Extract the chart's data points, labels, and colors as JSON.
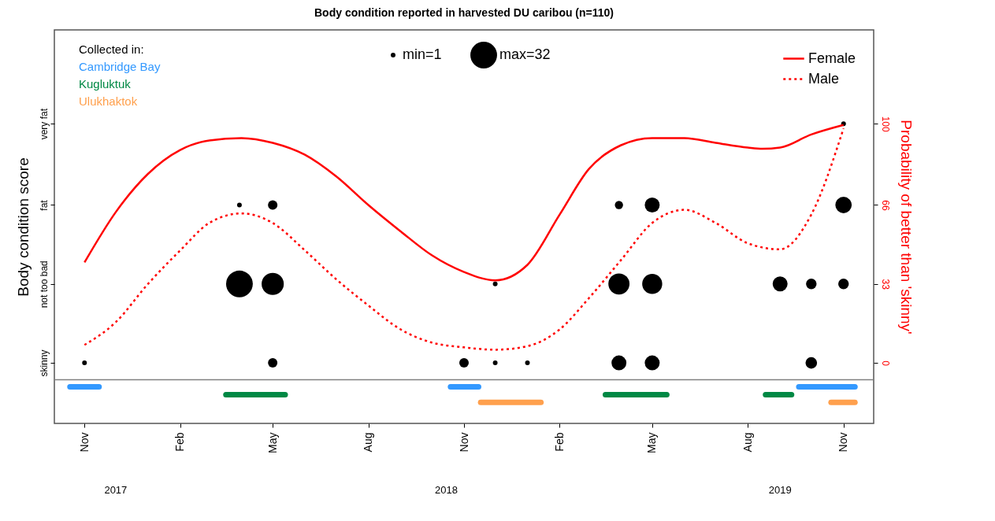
{
  "chart_data": {
    "type": "bubble",
    "title": "Body condition reported in harvested DU caribou (n=110)",
    "ylabel": "Body condition score",
    "y2label": "Probability of better than 'skinny'",
    "legend_title": "Collected in:",
    "xlim": [
      "2017-10-03",
      "2019-11-30"
    ],
    "xticks": [
      {
        "value": "2017-11-01",
        "label": "Nov"
      },
      {
        "value": "2018-02-01",
        "label": "Feb"
      },
      {
        "value": "2018-05-01",
        "label": "May"
      },
      {
        "value": "2018-08-01",
        "label": "Aug"
      },
      {
        "value": "2018-11-01",
        "label": "Nov"
      },
      {
        "value": "2019-02-01",
        "label": "Feb"
      },
      {
        "value": "2019-05-01",
        "label": "May"
      },
      {
        "value": "2019-08-01",
        "label": "Aug"
      },
      {
        "value": "2019-11-01",
        "label": "Nov"
      }
    ],
    "x2lim": [
      "2017-10-03",
      "2019-11-30"
    ],
    "x2ticks": [
      {
        "value": "2017-12-01",
        "label": "2017"
      },
      {
        "value": "2018-10-15",
        "label": "2018"
      },
      {
        "value": "2019-09-01",
        "label": "2019"
      }
    ],
    "y_categories": [
      "very fat",
      "fat",
      "not too bad",
      "skinny"
    ],
    "y2lim": [
      -25.3,
      139.2
    ],
    "y2ticks": [
      0,
      33,
      66,
      100
    ],
    "size_legend": [
      {
        "value": 1,
        "label": "min=1"
      },
      {
        "value": 32,
        "label": "max=32"
      }
    ],
    "ref_lines": [
      {
        "axis": "y2",
        "value": -7,
        "color": "#808080"
      }
    ],
    "grid": false,
    "legend": "top right",
    "series": [
      {
        "name": "Female",
        "type": "line",
        "axis": "y2",
        "color": "#ff0000",
        "line_style": "solid",
        "x": [
          "2017-11-01",
          "2017-12-01",
          "2018-01-01",
          "2018-02-01",
          "2018-03-01",
          "2018-04-01",
          "2018-05-01",
          "2018-06-01",
          "2018-07-01",
          "2018-08-01",
          "2018-09-01",
          "2018-10-01",
          "2018-11-01",
          "2018-12-01",
          "2019-01-01",
          "2019-02-01",
          "2019-03-01",
          "2019-04-01",
          "2019-05-01",
          "2019-06-01",
          "2019-07-01",
          "2019-08-01",
          "2019-08-15",
          "2019-09-01",
          "2019-10-01",
          "2019-11-01"
        ],
        "values": [
          42,
          63,
          79,
          89,
          93,
          94,
          92,
          87,
          78,
          66,
          55,
          45,
          38,
          34.5,
          41,
          62,
          81,
          91,
          94,
          94,
          92,
          90,
          89.5,
          90,
          95.5,
          99.5
        ]
      },
      {
        "name": "Male",
        "type": "line",
        "axis": "y2",
        "color": "#ff0000",
        "line_style": "dotted",
        "x": [
          "2017-11-01",
          "2017-12-01",
          "2018-01-01",
          "2018-02-01",
          "2018-03-01",
          "2018-04-01",
          "2018-05-01",
          "2018-06-01",
          "2018-07-01",
          "2018-08-01",
          "2018-09-01",
          "2018-10-01",
          "2018-11-01",
          "2018-12-01",
          "2019-01-01",
          "2019-02-01",
          "2019-03-01",
          "2019-04-01",
          "2019-05-01",
          "2019-06-01",
          "2019-07-01",
          "2019-08-01",
          "2019-09-01",
          "2019-10-01",
          "2019-11-01"
        ],
        "values": [
          7.5,
          17,
          33,
          47,
          58.5,
          62.5,
          58.5,
          47,
          35,
          24,
          14,
          8.5,
          6.5,
          5.5,
          7,
          14,
          27,
          43,
          58.5,
          64,
          58.5,
          50,
          47.5,
          62,
          98
        ]
      },
      {
        "axis": "y2",
        "color": "#000000",
        "x": [
          "2017-11-01",
          "2018-03-30",
          "2018-03-30",
          "2018-05-01",
          "2018-05-01",
          "2018-05-01",
          "2018-11-01",
          "2018-12-01",
          "2018-12-01",
          "2019-01-01",
          "2019-03-30",
          "2019-03-30",
          "2019-03-30",
          "2019-05-01",
          "2019-05-01",
          "2019-05-01",
          "2019-09-01",
          "2019-10-01",
          "2019-10-01",
          "2019-11-01",
          "2019-11-01",
          "2019-11-01"
        ],
        "values": [
          0,
          66,
          33,
          66,
          33,
          0,
          0,
          33,
          0,
          0,
          66,
          33,
          0,
          66,
          33,
          0,
          33,
          33,
          0,
          100,
          66,
          33
        ],
        "sizes": [
          1,
          1,
          32,
          4,
          22,
          4,
          4,
          1,
          1,
          1,
          3,
          20,
          10,
          10,
          18,
          10,
          10,
          5,
          6,
          1,
          12,
          5
        ]
      },
      {
        "name": "Cambridge Bay",
        "type": "line",
        "axis": "y2",
        "color": "#3399ff",
        "x": [
          "2017-10-18",
          "2017-11-15",
          "2018-05-01",
          "2018-10-19",
          "2018-11-15",
          "2019-05-01",
          "2019-09-19",
          "2019-11-12"
        ],
        "values": [
          -10,
          -10,
          null,
          -10,
          -10,
          null,
          -10,
          -10
        ]
      },
      {
        "name": "Kugluktuk",
        "type": "line",
        "axis": "y2",
        "color": "#008844",
        "x": [
          "2018-03-17",
          "2018-05-13",
          "2018-10-01",
          "2019-03-17",
          "2019-05-15",
          "2019-07-01",
          "2019-08-18",
          "2019-09-12"
        ],
        "values": [
          -13.3,
          -13.3,
          null,
          -13.3,
          -13.3,
          null,
          -13.3,
          -13.3
        ]
      },
      {
        "name": "Ulukhaktok",
        "type": "line",
        "axis": "y2",
        "color": "#ffa04d",
        "x": [
          "2018-11-17",
          "2019-01-14",
          "2019-06-01",
          "2019-10-20",
          "2019-11-12"
        ],
        "values": [
          -16.5,
          -16.5,
          null,
          -16.5,
          -16.5
        ]
      }
    ]
  }
}
